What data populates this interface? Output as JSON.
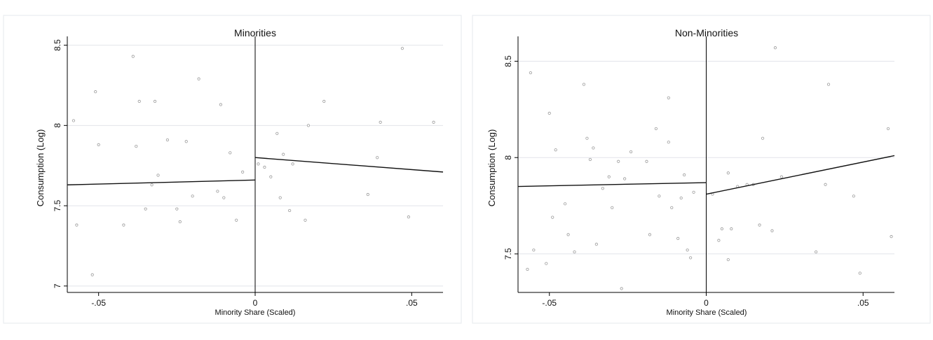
{
  "chart_data": [
    {
      "type": "scatter",
      "title": "Minorities",
      "xlabel": "Minority Share (Scaled)",
      "ylabel": "Consumption (Log)",
      "xlim": [
        -0.06,
        0.06
      ],
      "ylim": [
        6.96,
        8.52
      ],
      "xticks": [
        -0.05,
        0,
        0.05
      ],
      "xtick_labels": [
        "-.05",
        "0",
        ".05"
      ],
      "yticks": [
        7,
        7.5,
        8,
        8.5
      ],
      "ytick_labels": [
        "7",
        "7.5",
        "8",
        "8.5"
      ],
      "grid": true,
      "cutoff": 0,
      "points": [
        [
          -0.058,
          8.03
        ],
        [
          -0.057,
          7.38
        ],
        [
          -0.052,
          7.07
        ],
        [
          -0.051,
          8.21
        ],
        [
          -0.05,
          7.88
        ],
        [
          -0.042,
          7.38
        ],
        [
          -0.039,
          8.43
        ],
        [
          -0.038,
          7.87
        ],
        [
          -0.037,
          8.15
        ],
        [
          -0.035,
          7.48
        ],
        [
          -0.033,
          7.63
        ],
        [
          -0.032,
          8.15
        ],
        [
          -0.031,
          7.69
        ],
        [
          -0.028,
          7.91
        ],
        [
          -0.025,
          7.48
        ],
        [
          -0.024,
          7.4
        ],
        [
          -0.022,
          7.9
        ],
        [
          -0.02,
          7.56
        ],
        [
          -0.018,
          8.29
        ],
        [
          -0.012,
          7.59
        ],
        [
          -0.011,
          8.13
        ],
        [
          -0.01,
          7.55
        ],
        [
          -0.008,
          7.83
        ],
        [
          -0.006,
          7.41
        ],
        [
          -0.004,
          7.71
        ],
        [
          0.001,
          7.76
        ],
        [
          0.003,
          7.74
        ],
        [
          0.005,
          7.68
        ],
        [
          0.007,
          7.95
        ],
        [
          0.008,
          7.55
        ],
        [
          0.009,
          7.82
        ],
        [
          0.011,
          7.47
        ],
        [
          0.012,
          7.76
        ],
        [
          0.016,
          7.41
        ],
        [
          0.017,
          8.0
        ],
        [
          0.022,
          8.15
        ],
        [
          0.036,
          7.57
        ],
        [
          0.039,
          7.8
        ],
        [
          0.04,
          8.02
        ],
        [
          0.047,
          8.48
        ],
        [
          0.049,
          7.43
        ],
        [
          0.057,
          8.02
        ]
      ],
      "fit_lines": [
        {
          "x": [
            -0.06,
            0.0
          ],
          "y": [
            7.63,
            7.66
          ]
        },
        {
          "x": [
            0.0,
            0.06
          ],
          "y": [
            7.8,
            7.71
          ]
        }
      ]
    },
    {
      "type": "scatter",
      "title": "Non-Minorities",
      "xlabel": "Minority Share (Scaled)",
      "ylabel": "Consumption (Log)",
      "xlim": [
        -0.06,
        0.06
      ],
      "ylim": [
        7.3,
        8.6
      ],
      "xticks": [
        -0.05,
        0,
        0.05
      ],
      "xtick_labels": [
        "-.05",
        "0",
        ".05"
      ],
      "yticks": [
        7.5,
        8,
        8.5
      ],
      "ytick_labels": [
        "7.5",
        "8",
        "8.5"
      ],
      "grid": true,
      "cutoff": 0,
      "points": [
        [
          -0.057,
          7.42
        ],
        [
          -0.056,
          8.44
        ],
        [
          -0.055,
          7.52
        ],
        [
          -0.051,
          7.45
        ],
        [
          -0.05,
          8.23
        ],
        [
          -0.049,
          7.69
        ],
        [
          -0.048,
          8.04
        ],
        [
          -0.045,
          7.76
        ],
        [
          -0.044,
          7.6
        ],
        [
          -0.042,
          7.51
        ],
        [
          -0.039,
          8.38
        ],
        [
          -0.038,
          8.1
        ],
        [
          -0.037,
          7.99
        ],
        [
          -0.036,
          8.05
        ],
        [
          -0.035,
          7.55
        ],
        [
          -0.033,
          7.84
        ],
        [
          -0.031,
          7.9
        ],
        [
          -0.03,
          7.74
        ],
        [
          -0.028,
          7.98
        ],
        [
          -0.027,
          7.32
        ],
        [
          -0.026,
          7.89
        ],
        [
          -0.024,
          8.03
        ],
        [
          -0.019,
          7.98
        ],
        [
          -0.018,
          7.6
        ],
        [
          -0.016,
          8.15
        ],
        [
          -0.015,
          7.8
        ],
        [
          -0.012,
          8.31
        ],
        [
          -0.012,
          8.08
        ],
        [
          -0.011,
          7.74
        ],
        [
          -0.009,
          7.58
        ],
        [
          -0.008,
          7.79
        ],
        [
          -0.007,
          7.91
        ],
        [
          -0.006,
          7.52
        ],
        [
          -0.005,
          7.48
        ],
        [
          -0.004,
          7.82
        ],
        [
          0.002,
          7.81
        ],
        [
          0.004,
          7.57
        ],
        [
          0.005,
          7.63
        ],
        [
          0.007,
          7.92
        ],
        [
          0.007,
          7.47
        ],
        [
          0.008,
          7.63
        ],
        [
          0.01,
          7.85
        ],
        [
          0.013,
          7.86
        ],
        [
          0.015,
          7.86
        ],
        [
          0.017,
          7.65
        ],
        [
          0.018,
          8.1
        ],
        [
          0.021,
          7.62
        ],
        [
          0.022,
          8.57
        ],
        [
          0.024,
          7.9
        ],
        [
          0.035,
          7.51
        ],
        [
          0.038,
          7.86
        ],
        [
          0.039,
          8.38
        ],
        [
          0.047,
          7.8
        ],
        [
          0.049,
          7.4
        ],
        [
          0.058,
          8.15
        ],
        [
          0.059,
          7.59
        ]
      ],
      "fit_lines": [
        {
          "x": [
            -0.06,
            0.0
          ],
          "y": [
            7.85,
            7.87
          ]
        },
        {
          "x": [
            0.0,
            0.06
          ],
          "y": [
            7.81,
            8.01
          ]
        }
      ]
    }
  ]
}
